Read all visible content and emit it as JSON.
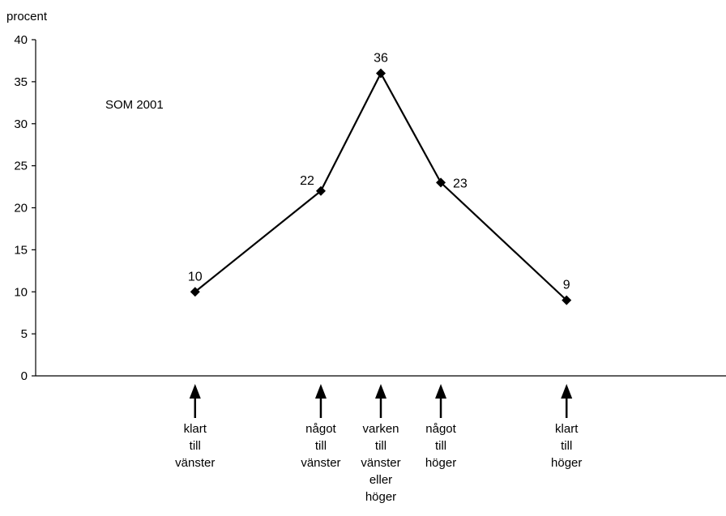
{
  "chart_data": {
    "type": "line",
    "ylabel": "procent",
    "annotation": "SOM 2001",
    "ylim": [
      0,
      40
    ],
    "yticks": [
      0,
      5,
      10,
      15,
      20,
      25,
      30,
      35,
      40
    ],
    "yticks_text": [
      "0",
      "5",
      "10",
      "15",
      "20",
      "25",
      "30",
      "35",
      "40"
    ],
    "grid": false,
    "series": [
      {
        "x": [
          1.94,
          3.47,
          4.2,
          4.93,
          6.46
        ],
        "values": [
          10,
          22,
          36,
          23,
          9
        ],
        "value_labels": [
          "10",
          "22",
          "36",
          "23",
          "9"
        ],
        "marker": "diamond",
        "color": "#000000"
      }
    ],
    "xlim": [
      0,
      8.4
    ],
    "category_markers": [
      {
        "x": 1.94,
        "lines": [
          "klart",
          "till",
          "vänster"
        ]
      },
      {
        "x": 3.47,
        "lines": [
          "något",
          "till",
          "vänster"
        ]
      },
      {
        "x": 4.2,
        "lines": [
          "varken",
          "till",
          "vänster",
          "eller",
          "höger"
        ]
      },
      {
        "x": 4.93,
        "lines": [
          "något",
          "till",
          "höger"
        ]
      },
      {
        "x": 6.46,
        "lines": [
          "klart",
          "till",
          "höger"
        ]
      }
    ]
  }
}
